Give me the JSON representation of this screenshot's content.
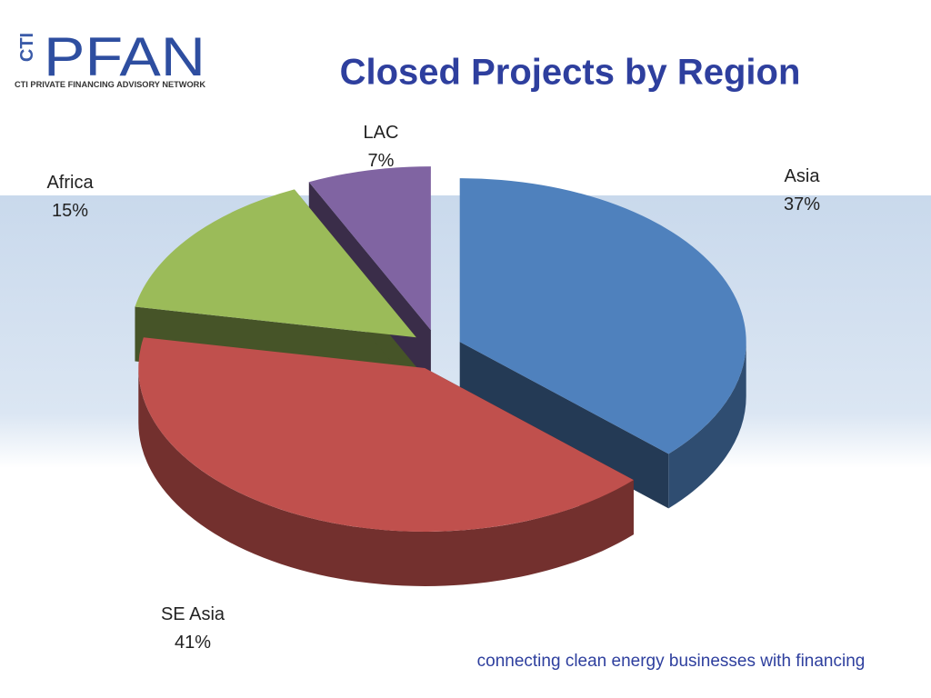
{
  "logo": {
    "mark": "CTI",
    "name": "PFAN",
    "tagline": "CTI PRIVATE FINANCING ADVISORY NETWORK"
  },
  "footer": "connecting clean energy businesses with financing",
  "chart_data": {
    "type": "pie",
    "title": "Closed Projects by Region",
    "categories": [
      "Asia",
      "SE Asia",
      "Africa",
      "LAC"
    ],
    "values": [
      37,
      41,
      15,
      7
    ],
    "value_labels": [
      "37%",
      "41%",
      "15%",
      "7%"
    ],
    "colors": [
      "#4f81bd",
      "#c0504d",
      "#9bbb59",
      "#8064a2"
    ]
  }
}
